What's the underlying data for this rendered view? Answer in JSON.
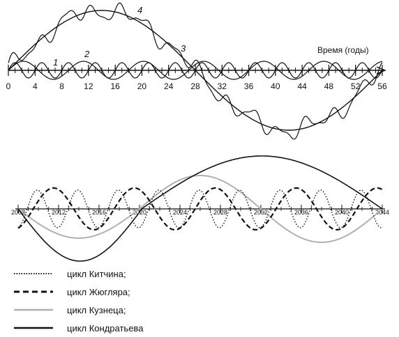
{
  "chart_data": [
    {
      "type": "line",
      "xlabel": "Время (годы)",
      "x_ticks": [
        0,
        4,
        8,
        12,
        16,
        20,
        24,
        28,
        32,
        36,
        40,
        44,
        48,
        52,
        56
      ],
      "xlim": [
        0,
        56
      ],
      "series": [
        {
          "name": "1",
          "period_years": 4,
          "amplitude": 0.08
        },
        {
          "name": "2",
          "period_years": 9,
          "amplitude": 0.1
        },
        {
          "name": "3",
          "period_years": 56,
          "amplitude": 1.0,
          "noisy": true
        },
        {
          "name": "4",
          "period_years": 56,
          "amplitude": 1.0
        }
      ]
    },
    {
      "type": "line",
      "x_ticks": [
        "2008",
        "2012",
        "2016",
        "2020",
        "2024",
        "2028",
        "2032",
        "2036",
        "2040",
        "2044"
      ],
      "xlim": [
        2008,
        2044
      ],
      "series": [
        {
          "name": "цикл Китчина;",
          "period_years": 4,
          "style": "dotted",
          "color": "#111111"
        },
        {
          "name": "цикл Жюгляра;",
          "period_years": 9,
          "style": "dashed",
          "color": "#111111"
        },
        {
          "name": "цикл Кузнеца;",
          "period_years": 20,
          "style": "solid",
          "color": "#b0b0b0"
        },
        {
          "name": "цикл Кондратьева",
          "period_years": 48,
          "style": "solid",
          "color": "#111111"
        }
      ]
    }
  ]
}
